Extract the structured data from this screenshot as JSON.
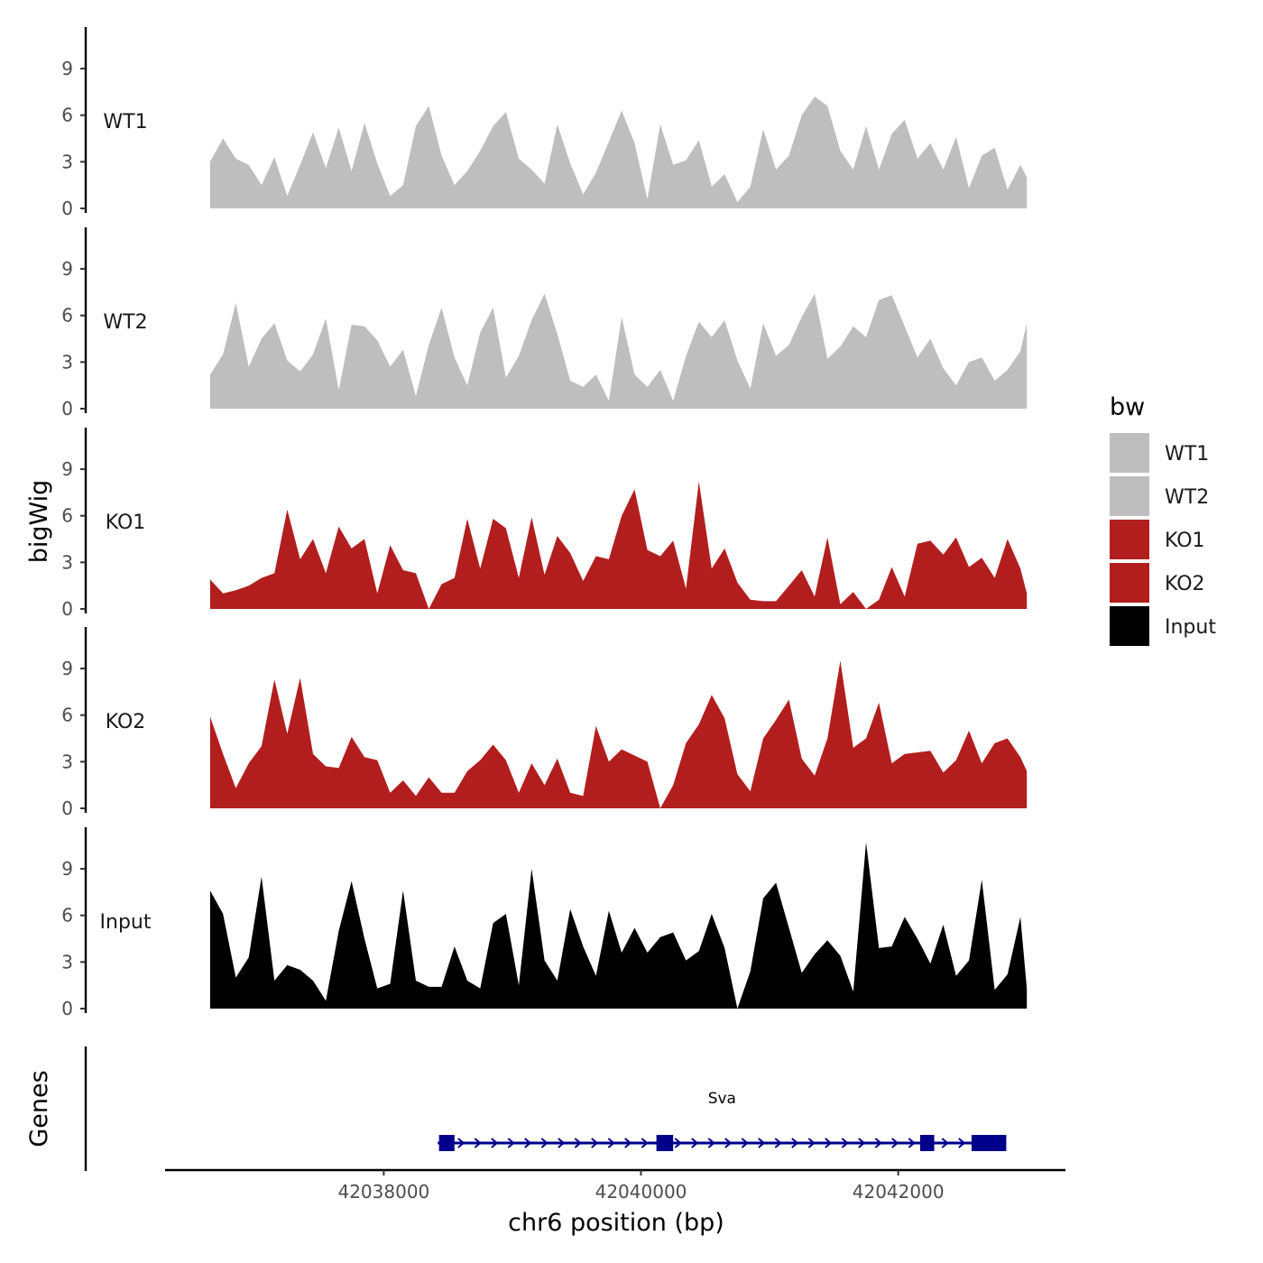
{
  "chart_data": {
    "type": "area",
    "title": "",
    "ylabel": "bigWig",
    "xlabel": "chr6 position (bp)",
    "xlim": [
      42036300,
      42043300
    ],
    "ylim": [
      0,
      11.5
    ],
    "x_ticks": [
      42038000,
      42040000,
      42042000
    ],
    "x_tick_labels": [
      "42038000",
      "42040000",
      "42042000"
    ],
    "y_ticks": [
      0,
      3,
      6,
      9
    ],
    "y_tick_labels": [
      "0",
      "3",
      "6",
      "9"
    ],
    "grid": false,
    "legend": {
      "title": "bw",
      "position": "right",
      "entries": [
        {
          "label": "WT1",
          "color": "#bebebe"
        },
        {
          "label": "WT2",
          "color": "#bebebe"
        },
        {
          "label": "KO1",
          "color": "#b21e1e"
        },
        {
          "label": "KO2",
          "color": "#b21e1e"
        },
        {
          "label": "Input",
          "color": "#000000"
        }
      ]
    },
    "series": [
      {
        "name": "WT1",
        "color": "#bebebe",
        "x": [
          42036650,
          42036750,
          42036850,
          42036950,
          42037050,
          42037150,
          42037250,
          42037350,
          42037450,
          42037550,
          42037650,
          42037750,
          42037850,
          42037950,
          42038050,
          42038150,
          42038250,
          42038350,
          42038450,
          42038550,
          42038650,
          42038750,
          42038850,
          42038950,
          42039050,
          42039150,
          42039250,
          42039350,
          42039450,
          42039550,
          42039650,
          42039750,
          42039850,
          42039950,
          42040050,
          42040150,
          42040250,
          42040350,
          42040450,
          42040550,
          42040650,
          42040750,
          42040850,
          42040950,
          42041050,
          42041150,
          42041250,
          42041350,
          42041450,
          42041550,
          42041650,
          42041750,
          42041850,
          42041950,
          42042050,
          42042150,
          42042250,
          42042350,
          42042450,
          42042550,
          42042650,
          42042750,
          42042850,
          42042950,
          42043000
        ],
        "values": [
          3.0,
          4.5,
          3.2,
          2.8,
          1.5,
          3.3,
          0.8,
          2.8,
          4.9,
          2.6,
          5.2,
          2.4,
          5.5,
          2.9,
          0.8,
          1.5,
          5.3,
          6.6,
          3.4,
          1.5,
          2.4,
          3.7,
          5.3,
          6.2,
          3.2,
          2.5,
          1.6,
          5.4,
          2.9,
          0.9,
          2.3,
          4.3,
          6.3,
          4.2,
          0.6,
          5.4,
          2.8,
          3.1,
          4.4,
          1.4,
          2.2,
          0.4,
          1.4,
          5.1,
          2.5,
          3.4,
          6.0,
          7.2,
          6.6,
          3.7,
          2.5,
          5.3,
          2.5,
          4.8,
          5.7,
          3.2,
          4.2,
          2.5,
          4.6,
          1.3,
          3.4,
          3.9,
          1.2,
          2.8,
          2.0
        ]
      },
      {
        "name": "WT2",
        "color": "#bebebe",
        "x": [
          42036650,
          42036750,
          42036850,
          42036950,
          42037050,
          42037150,
          42037250,
          42037350,
          42037450,
          42037550,
          42037650,
          42037750,
          42037850,
          42037950,
          42038050,
          42038150,
          42038250,
          42038350,
          42038450,
          42038550,
          42038650,
          42038750,
          42038850,
          42038950,
          42039050,
          42039150,
          42039250,
          42039350,
          42039450,
          42039550,
          42039650,
          42039750,
          42039850,
          42039950,
          42040050,
          42040150,
          42040250,
          42040350,
          42040450,
          42040550,
          42040650,
          42040750,
          42040850,
          42040950,
          42041050,
          42041150,
          42041250,
          42041350,
          42041450,
          42041550,
          42041650,
          42041750,
          42041850,
          42041950,
          42042050,
          42042150,
          42042250,
          42042350,
          42042450,
          42042550,
          42042650,
          42042750,
          42042850,
          42042950,
          42043000
        ],
        "values": [
          2.2,
          3.5,
          6.8,
          2.7,
          4.5,
          5.5,
          3.1,
          2.4,
          3.5,
          5.8,
          1.2,
          5.4,
          5.3,
          4.4,
          2.7,
          3.8,
          0.8,
          4.1,
          6.5,
          3.3,
          1.5,
          4.9,
          6.5,
          2.0,
          3.4,
          5.7,
          7.4,
          4.8,
          1.8,
          1.4,
          2.2,
          0.5,
          5.9,
          2.2,
          1.4,
          2.5,
          0.5,
          3.4,
          5.6,
          4.6,
          5.7,
          3.1,
          1.3,
          5.5,
          3.4,
          4.1,
          5.9,
          7.4,
          3.2,
          4.0,
          5.3,
          4.6,
          7.0,
          7.3,
          5.3,
          3.3,
          4.5,
          2.6,
          1.5,
          3.0,
          3.3,
          1.8,
          2.5,
          3.7,
          5.5
        ]
      },
      {
        "name": "KO1",
        "color": "#b21e1e",
        "x": [
          42036650,
          42036750,
          42036850,
          42036950,
          42037050,
          42037150,
          42037250,
          42037350,
          42037450,
          42037550,
          42037650,
          42037750,
          42037850,
          42037950,
          42038050,
          42038150,
          42038250,
          42038350,
          42038450,
          42038550,
          42038650,
          42038750,
          42038850,
          42038950,
          42039050,
          42039150,
          42039250,
          42039350,
          42039450,
          42039550,
          42039650,
          42039750,
          42039850,
          42039950,
          42040050,
          42040150,
          42040250,
          42040350,
          42040450,
          42040550,
          42040650,
          42040750,
          42040850,
          42040950,
          42041050,
          42041150,
          42041250,
          42041350,
          42041450,
          42041550,
          42041650,
          42041750,
          42041850,
          42041950,
          42042050,
          42042150,
          42042250,
          42042350,
          42042450,
          42042550,
          42042650,
          42042750,
          42042850,
          42042950,
          42043000
        ],
        "values": [
          1.9,
          1.0,
          1.2,
          1.5,
          2.0,
          2.3,
          6.4,
          3.2,
          4.5,
          2.3,
          5.3,
          3.9,
          4.5,
          1.0,
          4.1,
          2.5,
          2.3,
          0.0,
          1.6,
          2.0,
          5.8,
          2.6,
          5.8,
          5.2,
          2.0,
          5.9,
          2.2,
          4.7,
          3.6,
          1.8,
          3.4,
          3.2,
          6.0,
          7.7,
          3.8,
          3.4,
          4.4,
          1.3,
          8.2,
          2.6,
          3.9,
          1.7,
          0.6,
          0.5,
          0.5,
          1.5,
          2.5,
          0.8,
          4.6,
          0.3,
          1.1,
          0.0,
          0.6,
          2.7,
          0.8,
          4.2,
          4.4,
          3.5,
          4.6,
          2.7,
          3.3,
          2.0,
          4.5,
          2.6,
          1.0
        ]
      },
      {
        "name": "KO2",
        "color": "#b21e1e",
        "x": [
          42036650,
          42036750,
          42036850,
          42036950,
          42037050,
          42037150,
          42037250,
          42037350,
          42037450,
          42037550,
          42037650,
          42037750,
          42037850,
          42037950,
          42038050,
          42038150,
          42038250,
          42038350,
          42038450,
          42038550,
          42038650,
          42038750,
          42038850,
          42038950,
          42039050,
          42039150,
          42039250,
          42039350,
          42039450,
          42039550,
          42039650,
          42039750,
          42039850,
          42039950,
          42040050,
          42040150,
          42040250,
          42040350,
          42040450,
          42040550,
          42040650,
          42040750,
          42040850,
          42040950,
          42041050,
          42041150,
          42041250,
          42041350,
          42041450,
          42041550,
          42041650,
          42041750,
          42041850,
          42041950,
          42042050,
          42042150,
          42042250,
          42042350,
          42042450,
          42042550,
          42042650,
          42042750,
          42042850,
          42042950,
          42043000
        ],
        "values": [
          5.9,
          3.5,
          1.3,
          2.9,
          4.0,
          8.3,
          4.8,
          8.4,
          3.5,
          2.7,
          2.6,
          4.6,
          3.3,
          3.1,
          1.0,
          1.8,
          0.8,
          2.0,
          1.0,
          1.0,
          2.4,
          3.1,
          4.1,
          3.1,
          1.0,
          2.9,
          1.5,
          3.2,
          1.0,
          0.8,
          5.3,
          3.0,
          3.8,
          3.4,
          3.0,
          0.0,
          1.5,
          4.2,
          5.4,
          7.3,
          5.8,
          2.2,
          1.1,
          4.5,
          5.7,
          7.0,
          3.2,
          2.1,
          4.5,
          9.5,
          3.9,
          4.5,
          6.8,
          2.9,
          3.5,
          3.6,
          3.7,
          2.3,
          3.1,
          5.0,
          2.9,
          4.2,
          4.5,
          3.3,
          2.4
        ]
      },
      {
        "name": "Input",
        "color": "#000000",
        "x": [
          42036650,
          42036750,
          42036850,
          42036950,
          42037050,
          42037150,
          42037250,
          42037350,
          42037450,
          42037550,
          42037650,
          42037750,
          42037850,
          42037950,
          42038050,
          42038150,
          42038250,
          42038350,
          42038450,
          42038550,
          42038650,
          42038750,
          42038850,
          42038950,
          42039050,
          42039150,
          42039250,
          42039350,
          42039450,
          42039550,
          42039650,
          42039750,
          42039850,
          42039950,
          42040050,
          42040150,
          42040250,
          42040350,
          42040450,
          42040550,
          42040650,
          42040750,
          42040850,
          42040950,
          42041050,
          42041150,
          42041250,
          42041350,
          42041450,
          42041550,
          42041650,
          42041750,
          42041850,
          42041950,
          42042050,
          42042150,
          42042250,
          42042350,
          42042450,
          42042550,
          42042650,
          42042750,
          42042850,
          42042950,
          42043000
        ],
        "values": [
          7.6,
          6.1,
          2.0,
          3.3,
          8.5,
          1.8,
          2.8,
          2.5,
          1.8,
          0.5,
          5.0,
          8.2,
          4.5,
          1.3,
          1.6,
          7.6,
          1.8,
          1.4,
          1.4,
          4.0,
          1.8,
          1.3,
          5.5,
          6.1,
          1.5,
          9.0,
          3.1,
          1.8,
          6.4,
          4.0,
          2.1,
          6.3,
          3.6,
          5.2,
          3.6,
          4.6,
          4.9,
          3.1,
          3.7,
          6.1,
          3.9,
          0.0,
          2.4,
          7.1,
          8.1,
          5.2,
          2.3,
          3.5,
          4.4,
          3.4,
          1.1,
          10.7,
          3.9,
          4.0,
          5.9,
          4.5,
          2.9,
          5.4,
          2.1,
          3.1,
          8.3,
          1.2,
          2.2,
          5.9,
          1.3
        ]
      }
    ],
    "genes_track": {
      "label": "Genes",
      "gene_name": "Sva",
      "strand": "+",
      "color": "#00008b",
      "start": 42038420,
      "end": 42042840,
      "exons": [
        [
          42038430,
          42038550
        ],
        [
          42040120,
          42040250
        ],
        [
          42042170,
          42042280
        ],
        [
          42042570,
          42042840
        ]
      ]
    }
  }
}
